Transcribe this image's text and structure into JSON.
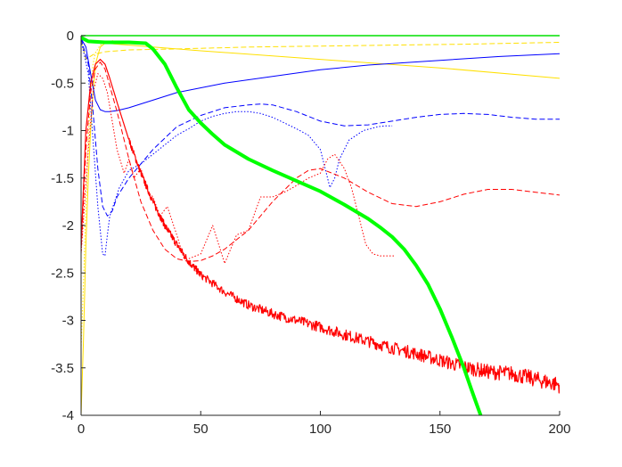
{
  "chart_data": {
    "type": "line",
    "title": "",
    "xlabel": "",
    "ylabel": "",
    "xlim": [
      0,
      200
    ],
    "ylim": [
      -4,
      0
    ],
    "xticks": [
      0,
      50,
      100,
      150,
      200
    ],
    "yticks": [
      0,
      -0.5,
      -1,
      -1.5,
      -2,
      -2.5,
      -3,
      -3.5,
      -4
    ],
    "xtick_labels": [
      "0",
      "50",
      "100",
      "150",
      "200"
    ],
    "ytick_labels": [
      "0",
      "-0.5",
      "-1",
      "-1.5",
      "-2",
      "-2.5",
      "-3",
      "-3.5",
      "-4"
    ],
    "grid": false,
    "legend": "none",
    "series": [
      {
        "color": "#00e000",
        "style": "solid",
        "width": 1.6,
        "x": [
          0,
          200
        ],
        "y": [
          0,
          0
        ]
      },
      {
        "color": "#ffe000",
        "style": "dashed",
        "width": 1,
        "x": [
          0,
          2,
          5,
          10,
          20,
          40,
          70,
          100,
          130,
          160,
          200
        ],
        "y": [
          -0.05,
          -0.25,
          -0.2,
          -0.17,
          -0.15,
          -0.14,
          -0.12,
          -0.11,
          -0.1,
          -0.09,
          -0.07
        ]
      },
      {
        "color": "#ffe000",
        "style": "solid",
        "width": 1,
        "x": [
          0,
          1,
          2,
          3,
          4,
          5,
          6,
          8,
          10,
          20,
          50,
          100,
          150,
          200
        ],
        "y": [
          -4,
          -3.2,
          -2.2,
          -1.5,
          -1,
          -0.6,
          -0.3,
          -0.12,
          -0.08,
          -0.1,
          -0.16,
          -0.25,
          -0.34,
          -0.45
        ]
      },
      {
        "color": "#ffe000",
        "style": "dotted",
        "width": 1,
        "x": [
          0,
          1,
          2,
          3,
          4,
          5,
          6,
          8,
          10,
          14
        ],
        "y": [
          -3.3,
          -2.6,
          -1.8,
          -1.1,
          -0.6,
          -0.3,
          -0.18,
          -0.1,
          -0.07,
          -0.05
        ]
      },
      {
        "color": "#0000ff",
        "style": "solid",
        "width": 1,
        "x": [
          0,
          2,
          4,
          6,
          8,
          10,
          12,
          15,
          20,
          30,
          40,
          60,
          80,
          100,
          120,
          150,
          175,
          200
        ],
        "y": [
          -0.03,
          -0.12,
          -0.4,
          -0.68,
          -0.78,
          -0.8,
          -0.8,
          -0.79,
          -0.76,
          -0.68,
          -0.6,
          -0.5,
          -0.43,
          -0.36,
          -0.31,
          -0.26,
          -0.22,
          -0.19
        ]
      },
      {
        "color": "#0000ff",
        "style": "dashed",
        "width": 1,
        "x": [
          0,
          3,
          5,
          7,
          9,
          11,
          13,
          15,
          20,
          30,
          40,
          50,
          60,
          70,
          75,
          80,
          90,
          100,
          110,
          120,
          130,
          140,
          150,
          160,
          170,
          180,
          190,
          200
        ],
        "y": [
          -0.03,
          -0.3,
          -0.8,
          -1.4,
          -1.8,
          -1.9,
          -1.85,
          -1.7,
          -1.5,
          -1.2,
          -0.96,
          -0.84,
          -0.76,
          -0.73,
          -0.72,
          -0.73,
          -0.8,
          -0.9,
          -0.95,
          -0.94,
          -0.9,
          -0.86,
          -0.83,
          -0.82,
          -0.83,
          -0.86,
          -0.88,
          -0.88
        ]
      },
      {
        "color": "#0000ff",
        "style": "dotted",
        "width": 1,
        "x": [
          0,
          3,
          5,
          7,
          9,
          10,
          11,
          12,
          14,
          16,
          20,
          25,
          30,
          35,
          40,
          45,
          50,
          55,
          60,
          65,
          70,
          75,
          80,
          85,
          90,
          95,
          100,
          102,
          104,
          106,
          108,
          110,
          112,
          115,
          118,
          121,
          124,
          127,
          130
        ],
        "y": [
          -0.05,
          -0.4,
          -1.1,
          -1.8,
          -2.3,
          -2.32,
          -2.1,
          -1.9,
          -1.75,
          -1.6,
          -1.42,
          -1.35,
          -1.25,
          -1.15,
          -1.05,
          -0.98,
          -0.9,
          -0.85,
          -0.82,
          -0.8,
          -0.8,
          -0.82,
          -0.86,
          -0.92,
          -0.98,
          -1.05,
          -1.2,
          -1.4,
          -1.6,
          -1.5,
          -1.3,
          -1.2,
          -1.1,
          -1.05,
          -1.0,
          -0.98,
          -0.96,
          -0.95,
          -0.95
        ]
      },
      {
        "color": "#ff0000",
        "style": "solid",
        "width": 1.2,
        "noise": 0.025,
        "x": [
          0,
          2,
          4,
          6,
          8,
          10,
          12,
          15,
          20,
          25,
          30,
          35,
          40,
          45,
          50,
          60,
          70,
          80,
          90,
          100,
          110,
          120,
          130,
          140,
          150,
          160,
          170,
          180,
          190,
          200
        ],
        "y": [
          -2.2,
          -1.0,
          -0.5,
          -0.3,
          -0.25,
          -0.3,
          -0.45,
          -0.7,
          -1.1,
          -1.45,
          -1.75,
          -2.0,
          -2.2,
          -2.38,
          -2.52,
          -2.7,
          -2.84,
          -2.93,
          -3.0,
          -3.07,
          -3.15,
          -3.22,
          -3.29,
          -3.35,
          -3.42,
          -3.49,
          -3.54,
          -3.56,
          -3.62,
          -3.68
        ]
      },
      {
        "color": "#ff0000",
        "style": "dashed",
        "width": 1,
        "x": [
          0,
          2,
          4,
          6,
          8,
          10,
          15,
          20,
          25,
          30,
          35,
          40,
          45,
          50,
          55,
          60,
          70,
          80,
          90,
          95,
          100,
          110,
          120,
          130,
          140,
          150,
          160,
          170,
          180,
          190,
          200
        ],
        "y": [
          -2.3,
          -1.2,
          -0.6,
          -0.35,
          -0.28,
          -0.35,
          -0.8,
          -1.3,
          -1.75,
          -2.05,
          -2.25,
          -2.35,
          -2.38,
          -2.37,
          -2.32,
          -2.25,
          -2.05,
          -1.75,
          -1.5,
          -1.42,
          -1.4,
          -1.5,
          -1.65,
          -1.77,
          -1.8,
          -1.75,
          -1.67,
          -1.62,
          -1.62,
          -1.65,
          -1.68
        ]
      },
      {
        "color": "#ff0000",
        "style": "dotted",
        "width": 1,
        "x": [
          0,
          3,
          5,
          7,
          9,
          11,
          13,
          15,
          18,
          20,
          22,
          25,
          28,
          30,
          33,
          36,
          40,
          43,
          45,
          50,
          55,
          60,
          65,
          70,
          75,
          80,
          85,
          90,
          95,
          100,
          103,
          106,
          110,
          113,
          116,
          119,
          122,
          125,
          128,
          131
        ],
        "y": [
          -2.3,
          -1.2,
          -0.6,
          -0.4,
          -0.45,
          -0.6,
          -0.9,
          -1.2,
          -1.45,
          -1.3,
          -1.5,
          -1.4,
          -1.65,
          -1.7,
          -1.9,
          -1.8,
          -2.1,
          -2.35,
          -2.35,
          -2.3,
          -2.0,
          -2.4,
          -2.1,
          -2.05,
          -1.7,
          -1.7,
          -1.65,
          -1.58,
          -1.5,
          -1.45,
          -1.3,
          -1.25,
          -1.4,
          -1.6,
          -1.9,
          -2.2,
          -2.3,
          -2.32,
          -2.32,
          -2.32
        ]
      },
      {
        "color": "#00ff00",
        "style": "solid",
        "width": 4,
        "x": [
          0,
          3,
          10,
          20,
          27,
          30,
          35,
          40,
          45,
          50,
          55,
          60,
          70,
          80,
          90,
          100,
          110,
          120,
          125,
          130,
          135,
          140,
          145,
          150,
          155,
          160,
          163,
          165,
          167
        ],
        "y": [
          -0.02,
          -0.06,
          -0.07,
          -0.07,
          -0.08,
          -0.14,
          -0.3,
          -0.55,
          -0.78,
          -0.92,
          -1.04,
          -1.15,
          -1.3,
          -1.42,
          -1.53,
          -1.64,
          -1.78,
          -1.93,
          -2.02,
          -2.12,
          -2.25,
          -2.42,
          -2.62,
          -2.88,
          -3.18,
          -3.5,
          -3.72,
          -3.86,
          -4.0
        ]
      }
    ]
  }
}
